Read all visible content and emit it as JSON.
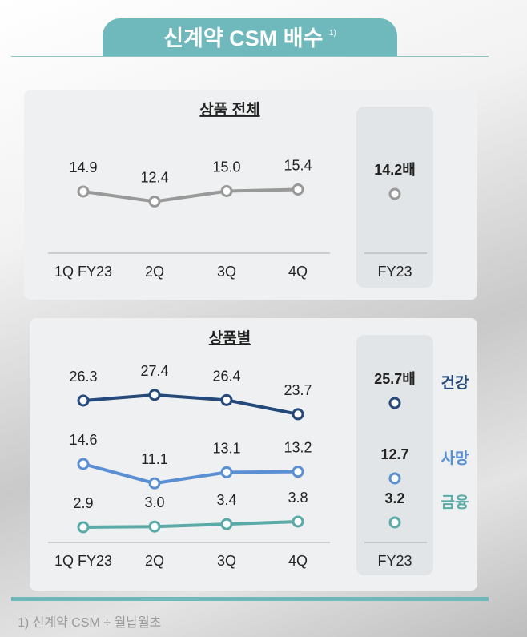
{
  "title": "신계약 CSM 배수",
  "title_note": "1)",
  "footnote": "1) 신계약 CSM ÷ 월납월초",
  "colors": {
    "accent": "#6fb8bb",
    "total": "#999999",
    "health": "#24497a",
    "death": "#5b8fd4",
    "finance": "#5aaaa8"
  },
  "chart_data": [
    {
      "type": "line",
      "title": "상품 전체",
      "categories": [
        "1Q FY23",
        "2Q",
        "3Q",
        "4Q"
      ],
      "series": [
        {
          "values": [
            14.9,
            12.4,
            15.0,
            15.4
          ],
          "labels": [
            "14.9",
            "12.4",
            "15.0",
            "15.4"
          ]
        }
      ],
      "fy": {
        "category": "FY23",
        "values": [
          14.2
        ],
        "labels": [
          "14.2배"
        ]
      }
    },
    {
      "type": "line",
      "title": "상품별",
      "categories": [
        "1Q FY23",
        "2Q",
        "3Q",
        "4Q"
      ],
      "series": [
        {
          "name": "건강",
          "values": [
            26.3,
            27.4,
            26.4,
            23.7
          ],
          "labels": [
            "26.3",
            "27.4",
            "26.4",
            "23.7"
          ]
        },
        {
          "name": "사망",
          "values": [
            14.6,
            11.1,
            13.1,
            13.2
          ],
          "labels": [
            "14.6",
            "11.1",
            "13.1",
            "13.2"
          ]
        },
        {
          "name": "금융",
          "values": [
            2.9,
            3.0,
            3.4,
            3.8
          ],
          "labels": [
            "2.9",
            "3.0",
            "3.4",
            "3.8"
          ]
        }
      ],
      "fy": {
        "category": "FY23",
        "values": [
          25.7,
          12.7,
          3.2
        ],
        "labels": [
          "25.7배",
          "12.7",
          "3.2"
        ]
      }
    }
  ]
}
